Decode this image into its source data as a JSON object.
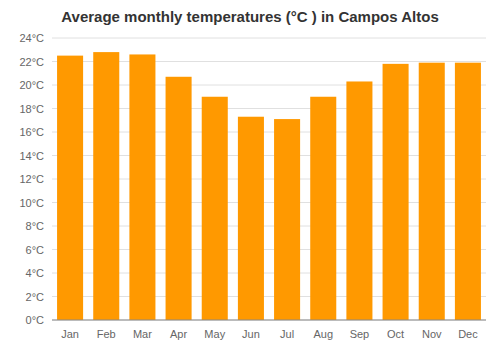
{
  "chart_data": {
    "type": "bar",
    "title": "Average monthly temperatures (°C ) in Campos Altos",
    "categories": [
      "Jan",
      "Feb",
      "Mar",
      "Apr",
      "May",
      "Jun",
      "Jul",
      "Aug",
      "Sep",
      "Oct",
      "Nov",
      "Dec"
    ],
    "values": [
      22.5,
      22.8,
      22.6,
      20.7,
      19.0,
      17.3,
      17.1,
      19.0,
      20.3,
      21.8,
      21.9,
      21.9
    ],
    "color": "#FF9900",
    "ylim": [
      0,
      24
    ],
    "yticks": [
      {
        "value": 0,
        "label": "0°C"
      },
      {
        "value": 2,
        "label": "2°C"
      },
      {
        "value": 4,
        "label": "4°C"
      },
      {
        "value": 6,
        "label": "6°C"
      },
      {
        "value": 8,
        "label": "8°C"
      },
      {
        "value": 10,
        "label": "10°C"
      },
      {
        "value": 12,
        "label": "12°C"
      },
      {
        "value": 14,
        "label": "14°C"
      },
      {
        "value": 16,
        "label": "16°C"
      },
      {
        "value": 18,
        "label": "18°C"
      },
      {
        "value": 20,
        "label": "20°C"
      },
      {
        "value": 22,
        "label": "22°C"
      },
      {
        "value": 24,
        "label": "24°C"
      }
    ],
    "grid": true
  }
}
